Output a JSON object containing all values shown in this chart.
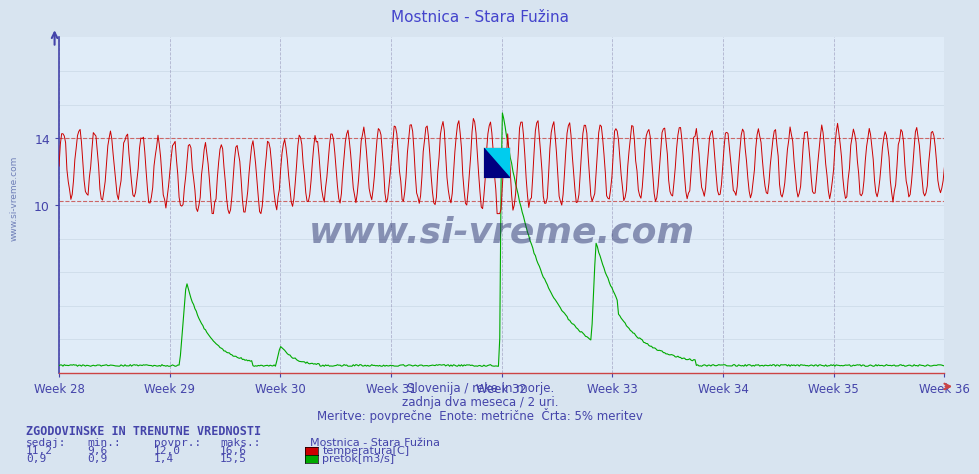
{
  "title": "Mostnica - Stara Fužina",
  "title_color": "#4444cc",
  "bg_color": "#d8e4f0",
  "plot_bg_color": "#e0ecf8",
  "x_label_weeks": [
    "Week 28",
    "Week 29",
    "Week 30",
    "Week 31",
    "Week 32",
    "Week 33",
    "Week 34",
    "Week 35",
    "Week 36"
  ],
  "temp_color": "#cc0000",
  "flow_color": "#00aa00",
  "dashed_line_color": "#cc6666",
  "vgrid_color": "#9999bb",
  "hgrid_color": "#aabbcc",
  "spine_color_left": "#4444aa",
  "spine_color_bottom": "#cc4444",
  "tick_color": "#4444aa",
  "subtitle1": "Slovenija / reke in morje.",
  "subtitle2": "zadnja dva meseca / 2 uri.",
  "subtitle3": "Meritve: povprečne  Enote: metrične  Črta: 5% meritev",
  "text_color": "#4444aa",
  "bottom_title": "ZGODOVINSKE IN TRENUTNE VREDNOSTI",
  "col_headers": [
    "sedaj:",
    "min.:",
    "povpr.:",
    "maks.:"
  ],
  "row1_vals": [
    "11,2",
    "9,6",
    "12,0",
    "16,6"
  ],
  "row2_vals": [
    "0,9",
    "0,9",
    "1,4",
    "15,5"
  ],
  "legend_label1": "temperatura[C]",
  "legend_label2": "pretok[m3/s]",
  "legend_station": "Mostnica - Stara Fužina",
  "ylim_max": 20.0,
  "temp_hline1": 10.25,
  "temp_hline2": 14.0,
  "yticks": [
    10,
    14
  ],
  "n_points": 672,
  "week_start": 28,
  "week_end": 36,
  "watermark": "www.si-vreme.com",
  "watermark_color": "#1a2060",
  "sidevreme_text": "www.si-vreme.com"
}
